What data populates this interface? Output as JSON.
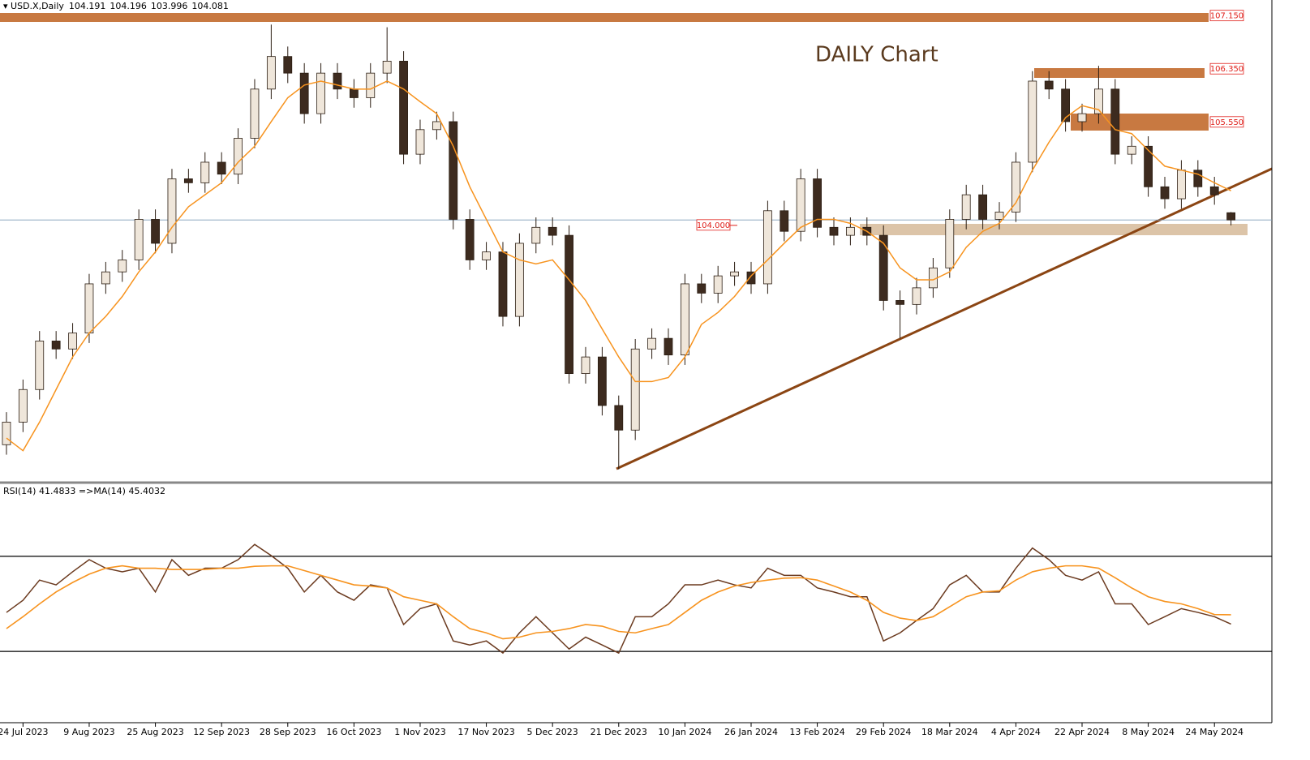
{
  "chart_data": [
    {
      "type": "candlestick",
      "symbol": "USD.X,Daily",
      "last": [
        104.191,
        104.196,
        103.996,
        104.081
      ],
      "title": "DAILY Chart",
      "open": [
        100.7,
        101.04,
        101.53,
        102.26,
        102.14,
        102.38,
        103.12,
        103.3,
        103.48,
        104.09,
        103.73,
        104.7,
        104.64,
        104.95,
        104.77,
        105.31,
        106.05,
        106.54,
        106.29,
        105.68,
        106.29,
        106.05,
        105.92,
        106.29,
        106.47,
        105.07,
        105.44,
        105.56,
        104.09,
        103.48,
        103.6,
        102.63,
        103.73,
        103.97,
        103.85,
        101.77,
        102.02,
        101.29,
        100.92,
        102.14,
        102.3,
        102.05,
        103.12,
        102.98,
        103.24,
        103.3,
        103.12,
        104.22,
        103.91,
        104.7,
        103.97,
        103.85,
        103.97,
        103.85,
        102.87,
        102.81,
        103.06,
        103.36,
        104.09,
        104.46,
        104.09,
        104.2,
        104.95,
        106.17,
        106.05,
        105.56,
        105.68,
        106.05,
        105.07,
        105.19,
        104.58,
        104.4,
        104.83,
        104.58,
        104.19
      ],
      "high": [
        101.19,
        101.68,
        102.41,
        102.41,
        102.53,
        103.27,
        103.45,
        103.63,
        104.24,
        104.24,
        104.85,
        104.85,
        105.1,
        105.1,
        105.46,
        106.2,
        107.02,
        106.69,
        106.44,
        106.44,
        106.44,
        106.2,
        106.44,
        106.98,
        106.62,
        105.59,
        105.71,
        105.71,
        104.24,
        103.75,
        103.75,
        103.88,
        104.12,
        104.12,
        104.0,
        102.17,
        102.17,
        101.44,
        102.29,
        102.45,
        102.45,
        103.27,
        103.27,
        103.39,
        103.45,
        103.45,
        104.37,
        104.37,
        104.85,
        104.85,
        104.12,
        104.12,
        104.12,
        104.0,
        103.02,
        103.21,
        103.51,
        104.24,
        104.61,
        104.61,
        104.35,
        105.1,
        106.32,
        106.32,
        106.2,
        105.83,
        106.4,
        106.2,
        105.34,
        105.34,
        104.73,
        104.98,
        104.98,
        104.73,
        104.2
      ],
      "low": [
        100.55,
        100.89,
        101.38,
        101.99,
        101.99,
        102.23,
        102.97,
        103.15,
        103.33,
        103.58,
        103.58,
        104.49,
        104.49,
        104.62,
        104.62,
        105.16,
        105.9,
        106.14,
        105.53,
        105.53,
        105.9,
        105.77,
        105.77,
        106.14,
        104.92,
        104.92,
        105.29,
        103.94,
        103.33,
        103.33,
        102.48,
        102.48,
        103.58,
        103.7,
        101.62,
        101.62,
        101.14,
        100.33,
        100.77,
        101.99,
        101.9,
        101.9,
        102.83,
        102.83,
        103.09,
        102.97,
        102.97,
        103.76,
        103.76,
        103.82,
        103.7,
        103.7,
        103.7,
        102.72,
        102.3,
        102.66,
        102.91,
        103.21,
        103.94,
        103.94,
        103.94,
        104.05,
        104.8,
        105.9,
        105.41,
        105.41,
        105.53,
        104.92,
        104.92,
        104.43,
        104.25,
        104.25,
        104.43,
        104.31,
        104.0
      ],
      "close": [
        101.04,
        101.53,
        102.26,
        102.14,
        102.38,
        103.12,
        103.3,
        103.48,
        104.09,
        103.73,
        104.7,
        104.64,
        104.95,
        104.77,
        105.31,
        106.05,
        106.54,
        106.29,
        105.68,
        106.29,
        106.05,
        105.92,
        106.29,
        106.47,
        105.07,
        105.44,
        105.56,
        104.09,
        103.48,
        103.6,
        102.63,
        103.73,
        103.97,
        103.85,
        101.77,
        102.02,
        101.29,
        100.92,
        102.14,
        102.3,
        102.05,
        103.12,
        102.98,
        103.24,
        103.3,
        103.12,
        104.22,
        103.91,
        104.7,
        103.97,
        103.85,
        103.97,
        103.85,
        102.87,
        102.81,
        103.06,
        103.36,
        104.09,
        104.46,
        104.09,
        104.2,
        104.95,
        106.17,
        106.05,
        105.56,
        105.68,
        106.05,
        105.07,
        105.19,
        104.58,
        104.4,
        104.83,
        104.58,
        104.46,
        104.081
      ],
      "up_color": "#efe6da",
      "down_color": "#3d2b1f",
      "ma": {
        "color": "#f7931e",
        "values": [
          100.8,
          100.61,
          101.04,
          101.53,
          102.02,
          102.38,
          102.63,
          102.93,
          103.3,
          103.6,
          103.97,
          104.28,
          104.46,
          104.64,
          104.95,
          105.19,
          105.56,
          105.92,
          106.11,
          106.17,
          106.11,
          106.05,
          106.05,
          106.17,
          106.05,
          105.86,
          105.68,
          105.19,
          104.58,
          104.09,
          103.6,
          103.48,
          103.42,
          103.48,
          103.18,
          102.87,
          102.44,
          102.02,
          101.65,
          101.65,
          101.71,
          102.02,
          102.51,
          102.69,
          102.93,
          103.24,
          103.48,
          103.73,
          103.97,
          104.09,
          104.09,
          104.03,
          103.91,
          103.73,
          103.36,
          103.18,
          103.18,
          103.3,
          103.67,
          103.91,
          104.03,
          104.34,
          104.83,
          105.25,
          105.62,
          105.8,
          105.74,
          105.44,
          105.38,
          105.13,
          104.89,
          104.83,
          104.77,
          104.64,
          104.52
        ]
      },
      "levels": [
        {
          "value": 107.15,
          "label": "107.150"
        },
        {
          "value": 106.35,
          "label": "106.350"
        },
        {
          "value": 105.55,
          "label": "105.550"
        },
        {
          "value": 104,
          "label": "104.000"
        }
      ],
      "ylim": [
        100.13,
        107.39
      ],
      "xlim": [
        -0.39,
        76.47
      ],
      "xticks": [
        {
          "value": 1,
          "label": "24 Jul 2023"
        },
        {
          "value": 5,
          "label": "9 Aug 2023"
        },
        {
          "value": 9,
          "label": "25 Aug 2023"
        },
        {
          "value": 13,
          "label": "12 Sep 2023"
        },
        {
          "value": 17,
          "label": "28 Sep 2023"
        },
        {
          "value": 21,
          "label": "16 Oct 2023"
        },
        {
          "value": 25,
          "label": "1 Nov 2023"
        },
        {
          "value": 29,
          "label": "17 Nov 2023"
        },
        {
          "value": 33,
          "label": "5 Dec 2023"
        },
        {
          "value": 37,
          "label": "21 Dec 2023"
        },
        {
          "value": 41,
          "label": "10 Jan 2024"
        },
        {
          "value": 45,
          "label": "26 Jan 2024"
        },
        {
          "value": 49,
          "label": "13 Feb 2024"
        },
        {
          "value": 53,
          "label": "29 Feb 2024"
        },
        {
          "value": 57,
          "label": "18 Mar 2024"
        },
        {
          "value": 61,
          "label": "4 Apr 2024"
        },
        {
          "value": 65,
          "label": "22 Apr 2024"
        },
        {
          "value": 69,
          "label": "8 May 2024"
        },
        {
          "value": 73,
          "label": "24 May 2024"
        }
      ]
    },
    {
      "type": "line",
      "label": "RSI(14) 41.4833 =>MA(14) 45.4032",
      "ylim": [
        0,
        100
      ],
      "levels": [
        30,
        70
      ],
      "series": [
        {
          "color": "#6b3a1f",
          "values": [
            46.4,
            51.5,
            60,
            58,
            63.5,
            68.6,
            65,
            63.5,
            65,
            55,
            68.6,
            62,
            65,
            65,
            68.6,
            75,
            70.3,
            65,
            55,
            62,
            55,
            51.5,
            58,
            56.7,
            41.3,
            48,
            50,
            34.4,
            32.7,
            34.4,
            29.3,
            37.8,
            44.6,
            37.8,
            31,
            36,
            32.7,
            29.3,
            44.6,
            44.6,
            50,
            58,
            58,
            60,
            58,
            56.7,
            65,
            62,
            62,
            56.7,
            55,
            53,
            53,
            34.4,
            37.8,
            43,
            48,
            58,
            62,
            55,
            55,
            65,
            73.5,
            68.6,
            62,
            60,
            63.5,
            50,
            50,
            41.3,
            44.6,
            48,
            46.4,
            44.6,
            41.4833
          ]
        },
        {
          "color": "#f7931e",
          "values": [
            39.6,
            44.6,
            50,
            55,
            59,
            62.5,
            65,
            66,
            65,
            65,
            64.5,
            64.5,
            64.5,
            65,
            65,
            65.8,
            66,
            66,
            64,
            62,
            60,
            58,
            57.5,
            56.7,
            53,
            51.5,
            50,
            44.6,
            39.6,
            37.8,
            35.3,
            36,
            37.8,
            38.4,
            39.6,
            41.3,
            40.6,
            38.4,
            37.8,
            39.6,
            41.3,
            46.4,
            51.5,
            55,
            57.5,
            59,
            60,
            60.8,
            61,
            60,
            57.5,
            55,
            51.5,
            46.4,
            44,
            43,
            44.6,
            48.8,
            53,
            55,
            55.5,
            60,
            63.5,
            65,
            66,
            66,
            65,
            61,
            56.7,
            53,
            51,
            50,
            48,
            45.5,
            45.4032
          ]
        }
      ]
    }
  ]
}
